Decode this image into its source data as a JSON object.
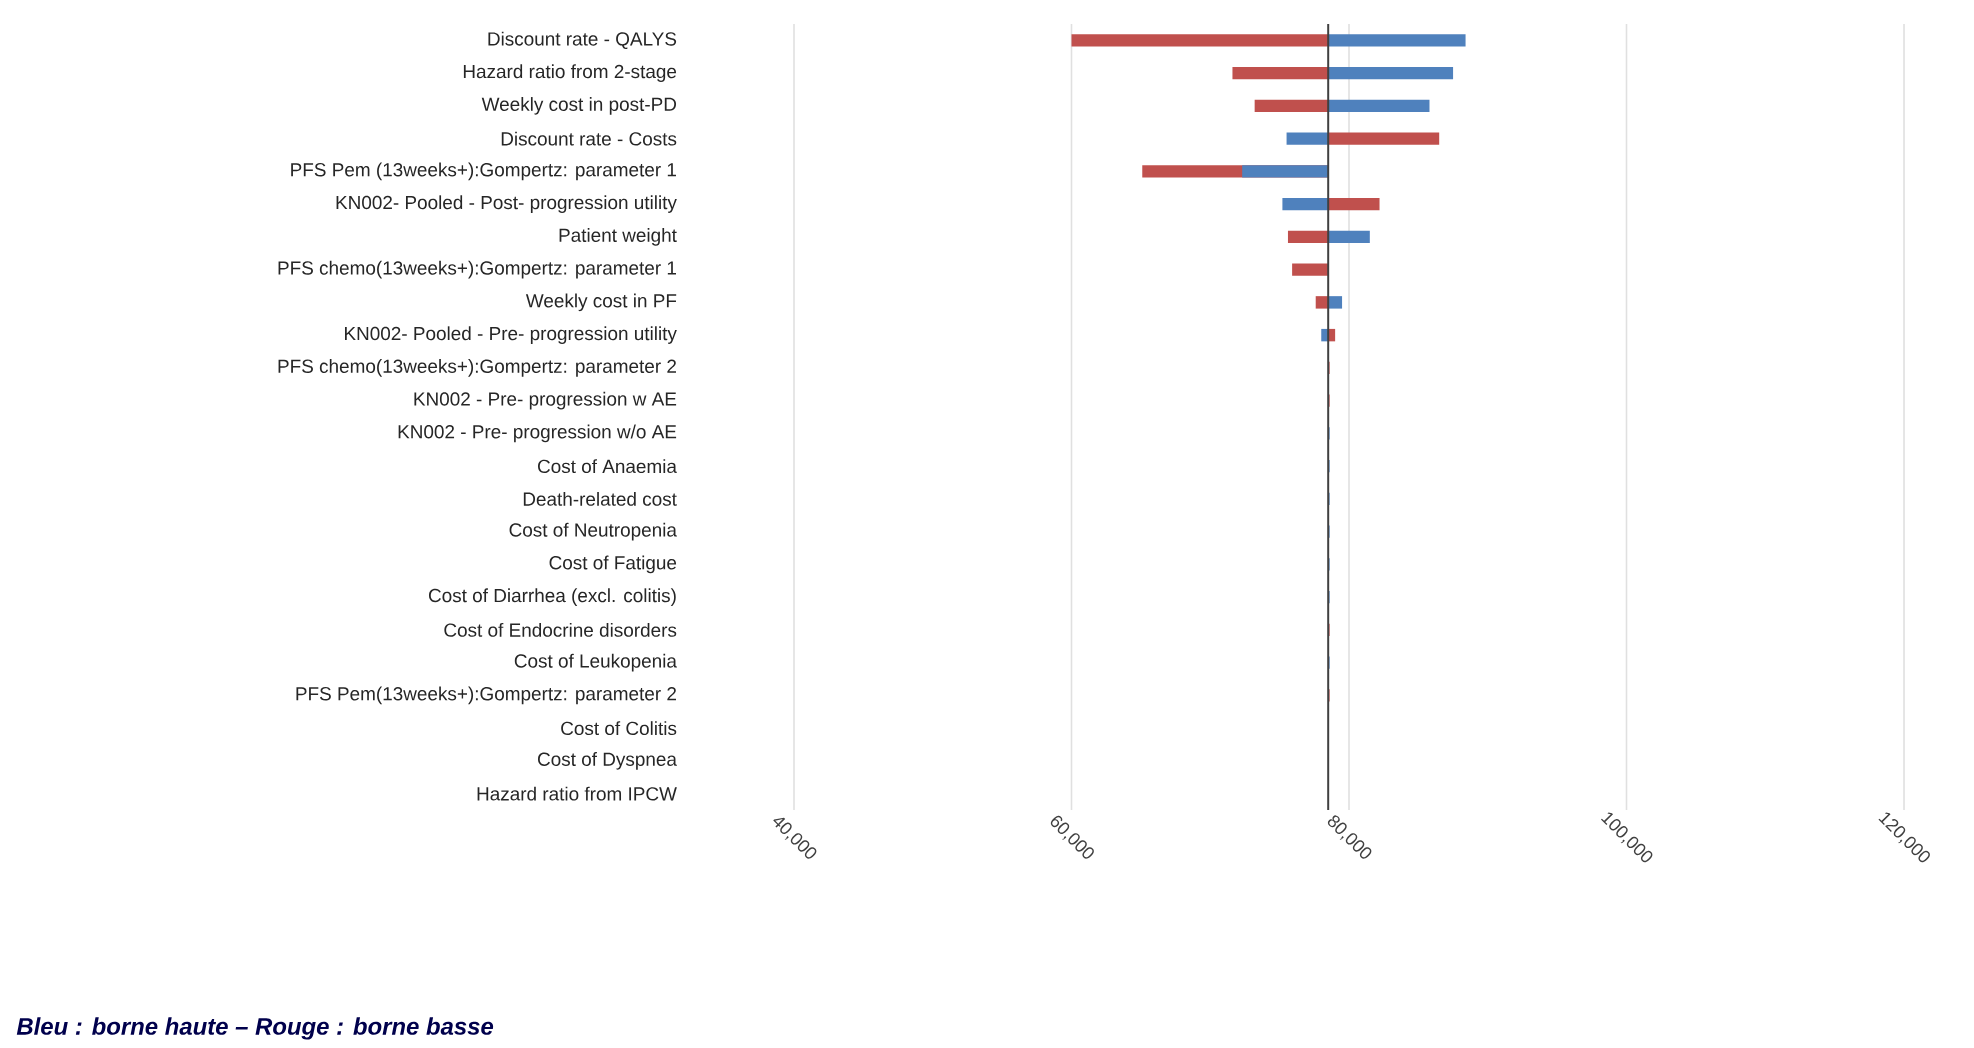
{
  "chart_data": {
    "type": "bar",
    "orientation": "horizontal",
    "categories": [
      "Discount rate - QALYS",
      "Hazard ratio from 2-stage",
      "Weekly cost in post-PD",
      "Discount rate - Costs",
      "PFS Pem (13weeks+):Gompertz: parameter 1",
      "KN002- Pooled - Post- progression utility",
      "Patient weight",
      "PFS chemo(13weeks+):Gompertz: parameter 1",
      "Weekly cost in PF",
      "KN002- Pooled  - Pre- progression utility",
      "PFS chemo(13weeks+):Gompertz: parameter 2",
      "KN002 - Pre- progression w AE",
      "KN002 - Pre- progression w/o AE",
      "Cost of Anaemia",
      "Death-related cost",
      "Cost of Neutropenia",
      "Cost of Fatigue",
      "Cost of Diarrhea (excl. colitis)",
      "Cost of Endocrine disorders",
      "Cost of Leukopenia",
      "PFS Pem(13weeks+):Gompertz: parameter 2",
      "Cost of Colitis",
      "Cost of Dyspnea",
      "Hazard ratio from IPCW"
    ],
    "series": [
      {
        "color": "#c0504d",
        "base": [
          78500,
          78500,
          78500,
          78500,
          78500,
          78500,
          78500,
          78500,
          78500,
          78500,
          78500,
          78500,
          null,
          null,
          null,
          null,
          null,
          null,
          78500,
          null,
          78500,
          null,
          null,
          null
        ],
        "values": [
          -18500,
          -6900,
          -5300,
          8000,
          -13400,
          3700,
          -2900,
          -2600,
          -900,
          500,
          100,
          100,
          null,
          null,
          null,
          null,
          null,
          null,
          100,
          null,
          100,
          null,
          null,
          null
        ]
      },
      {
        "color": "#4f81bd",
        "base": [
          78500,
          78500,
          78500,
          78500,
          78500,
          78500,
          78500,
          null,
          78500,
          78500,
          null,
          null,
          78500,
          78500,
          78500,
          78500,
          78500,
          78500,
          null,
          78500,
          null,
          null,
          null,
          null
        ],
        "values": [
          9900,
          9000,
          7300,
          -3000,
          -6200,
          -3300,
          3000,
          null,
          1000,
          -500,
          null,
          null,
          100,
          100,
          100,
          100,
          100,
          100,
          null,
          100,
          null,
          null,
          null,
          null
        ]
      }
    ],
    "xlim": [
      40000,
      120000
    ],
    "xticks": [
      {
        "value": 40000,
        "label": "40,000"
      },
      {
        "value": 60000,
        "label": "60,000"
      },
      {
        "value": 80000,
        "label": "80,000"
      },
      {
        "value": 100000,
        "label": "100,000"
      },
      {
        "value": 120000,
        "label": "120,000"
      }
    ],
    "grid": "x",
    "ref_lines": [
      {
        "axis": "x",
        "value": 78500,
        "color": "#404040"
      }
    ],
    "annotations": [
      "Bleu : borne haute – Rouge : borne basse"
    ]
  }
}
